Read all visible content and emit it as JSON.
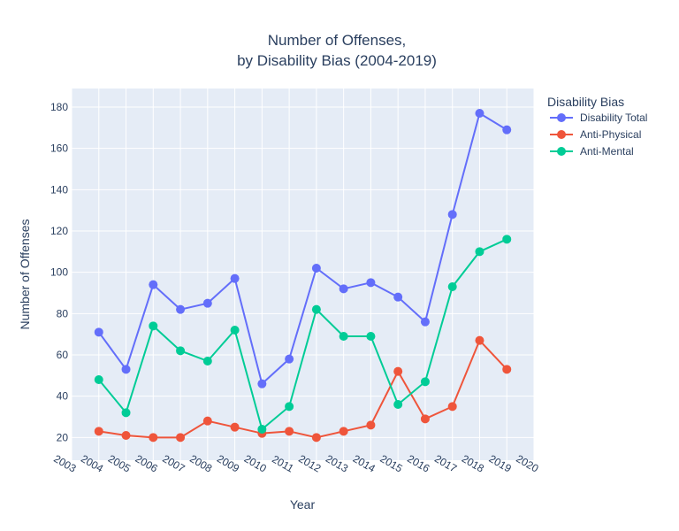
{
  "chart_data": {
    "type": "line",
    "title": "Number of Offenses,",
    "subtitle": "by Disability Bias (2004-2019)",
    "xlabel": "Year",
    "ylabel": "Number of Offenses",
    "x": [
      2004,
      2005,
      2006,
      2007,
      2008,
      2009,
      2010,
      2011,
      2012,
      2013,
      2014,
      2015,
      2016,
      2017,
      2018,
      2019
    ],
    "xlim": [
      2003,
      2020
    ],
    "ylim": [
      9,
      189
    ],
    "x_ticks": [
      "2003",
      "2004",
      "2005",
      "2006",
      "2007",
      "2008",
      "2009",
      "2010",
      "2011",
      "2012",
      "2013",
      "2014",
      "2015",
      "2016",
      "2017",
      "2018",
      "2019",
      "2020"
    ],
    "y_ticks": [
      "20",
      "40",
      "60",
      "80",
      "100",
      "120",
      "140",
      "160",
      "180"
    ],
    "grid": true,
    "legend_title": "Disability Bias",
    "legend_position": "top-right",
    "series": [
      {
        "name": "Disability Total",
        "color": "#636efa",
        "values": [
          71,
          53,
          94,
          82,
          85,
          97,
          46,
          58,
          102,
          92,
          95,
          88,
          76,
          128,
          177,
          169
        ]
      },
      {
        "name": "Anti-Physical",
        "color": "#ef553b",
        "values": [
          23,
          21,
          20,
          20,
          28,
          25,
          22,
          23,
          20,
          23,
          26,
          52,
          29,
          35,
          67,
          53
        ]
      },
      {
        "name": "Anti-Mental",
        "color": "#00cc96",
        "values": [
          48,
          32,
          74,
          62,
          57,
          72,
          24,
          35,
          82,
          69,
          69,
          36,
          47,
          93,
          110,
          116
        ]
      }
    ]
  }
}
